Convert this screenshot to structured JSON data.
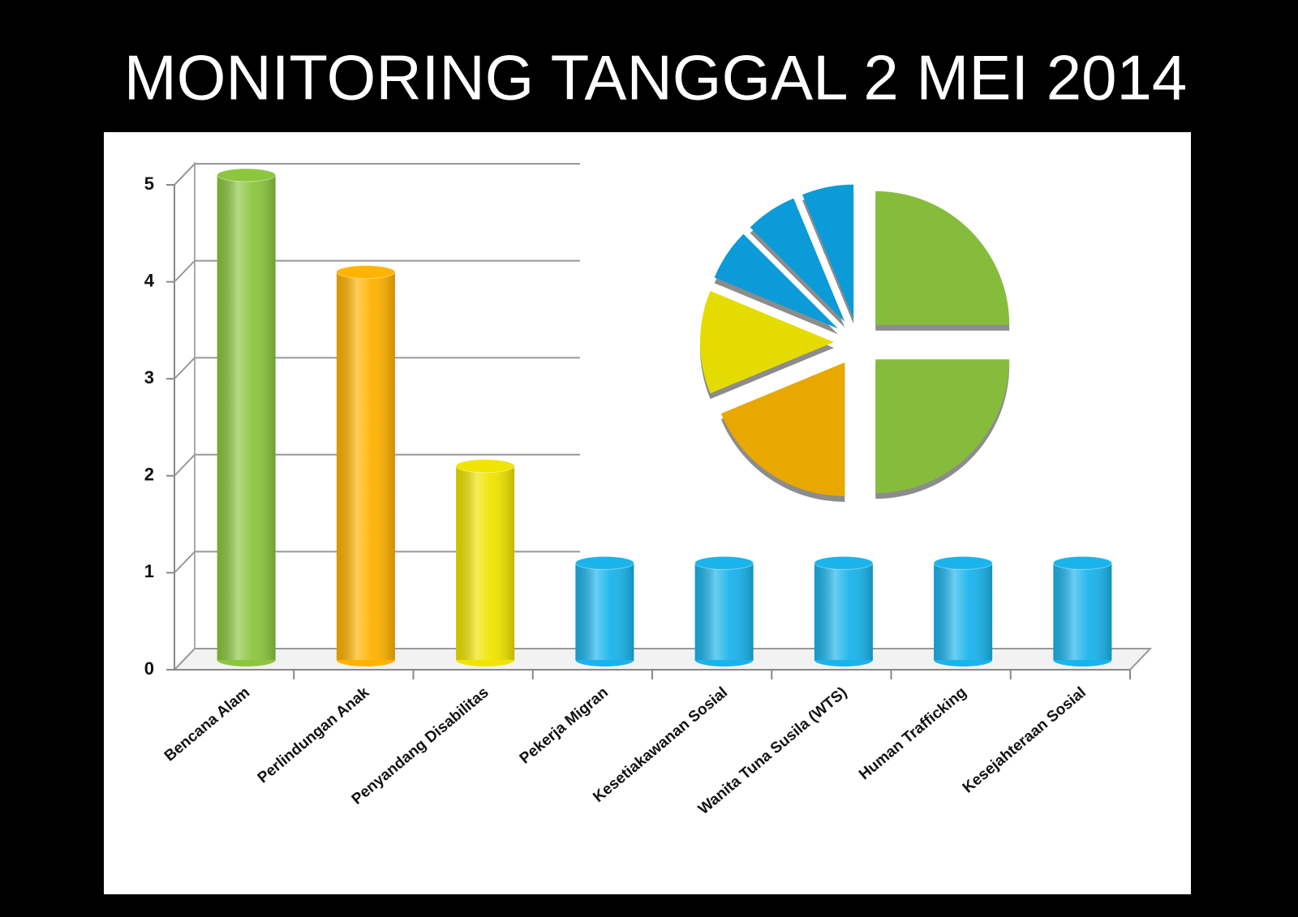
{
  "title": "MONITORING TANGGAL 2 MEI 2014",
  "chart_data": [
    {
      "type": "bar",
      "categories": [
        "Bencana Alam",
        "Perlindungan Anak",
        "Penyandang Disabilitas",
        "Pekerja Migran",
        "Kesetiakawanan Sosial",
        "Wanita Tuna Susila (WTS)",
        "Human Trafficking",
        "Kesejahteraan Sosial"
      ],
      "values": [
        5,
        4,
        2,
        1,
        1,
        1,
        1,
        1
      ],
      "colors": [
        "#8cc63f",
        "#ffb300",
        "#f0e400",
        "#1ab4ec",
        "#1ab4ec",
        "#1ab4ec",
        "#1ab4ec",
        "#1ab4ec"
      ],
      "ylim": [
        0,
        5
      ],
      "yticks": [
        0,
        1,
        2,
        3,
        4,
        5
      ],
      "grid": true
    },
    {
      "type": "pie",
      "values": [
        4,
        4,
        3,
        2,
        1,
        1,
        1
      ],
      "colors": [
        "#86bc3c",
        "#86bc3c",
        "#e8a800",
        "#e4dc00",
        "#0a9bd8",
        "#0a9bd8",
        "#0a9bd8"
      ]
    }
  ]
}
